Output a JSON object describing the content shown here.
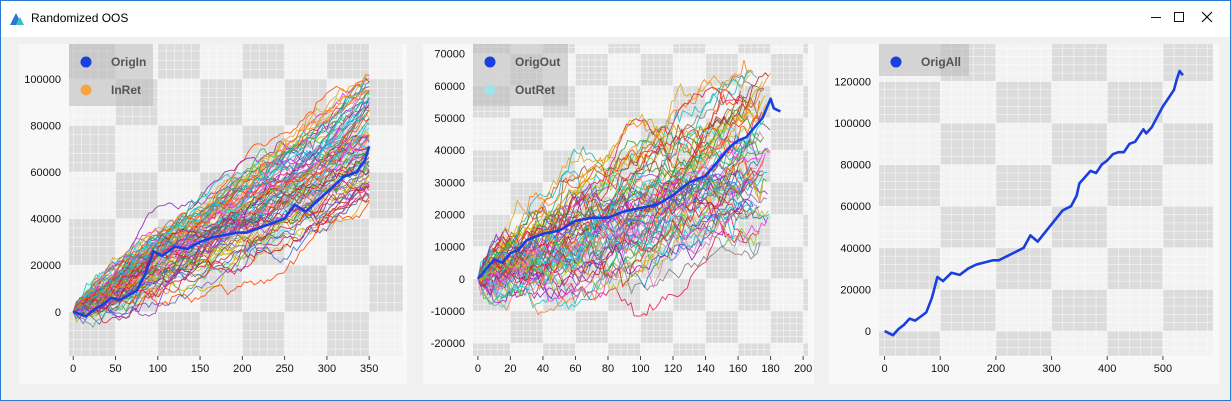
{
  "window": {
    "title": "Randomized OOS",
    "minimize_label": "—",
    "maximize_label": "☐",
    "close_label": "✕"
  },
  "colors": {
    "checker_dark": "#dcdcdc",
    "checker_light": "#f3f3f3",
    "minor_grid": "#ffffff",
    "legend_bg": "#b9b9b9",
    "original_line": "#1a3fe0",
    "inret_legend": "#f5a542",
    "outret_legend": "#9fe3e6"
  },
  "chart_data": [
    {
      "type": "line",
      "title": "",
      "xlabel": "",
      "ylabel": "",
      "xlim": [
        -5,
        390
      ],
      "ylim": [
        -19000,
        115000
      ],
      "xticks": [
        0,
        50,
        100,
        150,
        200,
        250,
        300,
        350
      ],
      "yticks": [
        0,
        20000,
        40000,
        60000,
        80000,
        100000
      ],
      "legend_position": "top-left",
      "legend": [
        {
          "name": "OrigIn",
          "color": "#1a3fe0"
        },
        {
          "name": "InRet",
          "color": "#f5a542"
        }
      ],
      "highlight_series": {
        "name": "OrigIn",
        "x": [
          0,
          15,
          25,
          35,
          45,
          55,
          65,
          75,
          85,
          95,
          105,
          120,
          135,
          150,
          165,
          180,
          195,
          205,
          220,
          235,
          250,
          262,
          275,
          290,
          305,
          320,
          335,
          345,
          350
        ],
        "y": [
          0,
          -2000,
          1000,
          3000,
          6000,
          5000,
          7000,
          9000,
          16000,
          26000,
          24000,
          28000,
          27000,
          30000,
          32000,
          33000,
          34000,
          34000,
          36000,
          38000,
          40000,
          46000,
          43000,
          48000,
          53000,
          58000,
          60000,
          65000,
          71000
        ]
      },
      "bundle": {
        "name": "InRet",
        "count": 90,
        "x_range": [
          0,
          350
        ],
        "end_value_range": [
          47000,
          102000
        ]
      }
    },
    {
      "type": "line",
      "title": "",
      "xlabel": "",
      "ylabel": "",
      "xlim": [
        -3,
        203
      ],
      "ylim": [
        -24000,
        73000
      ],
      "xticks": [
        0,
        20,
        40,
        60,
        80,
        100,
        120,
        140,
        160,
        180,
        200
      ],
      "yticks": [
        -20000,
        -10000,
        0,
        10000,
        20000,
        30000,
        40000,
        50000,
        60000,
        70000
      ],
      "legend_position": "top-left",
      "legend": [
        {
          "name": "OrigOut",
          "color": "#1a3fe0"
        },
        {
          "name": "OutRet",
          "color": "#9fe3e6"
        }
      ],
      "highlight_series": {
        "name": "OrigOut",
        "x": [
          0,
          5,
          10,
          15,
          20,
          25,
          30,
          40,
          50,
          60,
          70,
          80,
          90,
          100,
          110,
          120,
          130,
          140,
          150,
          155,
          160,
          165,
          170,
          175,
          180,
          182,
          186
        ],
        "y": [
          0,
          3000,
          6000,
          5000,
          8000,
          9000,
          12000,
          14000,
          15000,
          18000,
          19000,
          19000,
          21000,
          22000,
          23000,
          26000,
          30000,
          32000,
          38000,
          41000,
          43000,
          44000,
          47000,
          50000,
          56000,
          53000,
          52000
        ]
      },
      "bundle": {
        "name": "OutRet",
        "count": 75,
        "x_range": [
          0,
          180
        ],
        "end_value_range": [
          13000,
          66000
        ]
      }
    },
    {
      "type": "line",
      "title": "",
      "xlabel": "",
      "ylabel": "",
      "xlim": [
        -10,
        590
      ],
      "ylim": [
        -12000,
        138000
      ],
      "xticks": [
        0,
        100,
        200,
        300,
        400,
        500
      ],
      "yticks": [
        0,
        20000,
        40000,
        60000,
        80000,
        100000,
        120000
      ],
      "legend_position": "top-left",
      "legend": [
        {
          "name": "OrigAll",
          "color": "#1a3fe0"
        }
      ],
      "series": [
        {
          "name": "OrigAll",
          "x": [
            0,
            15,
            25,
            35,
            45,
            55,
            65,
            75,
            85,
            95,
            105,
            120,
            135,
            150,
            165,
            180,
            195,
            205,
            220,
            235,
            250,
            262,
            275,
            290,
            305,
            320,
            335,
            345,
            350,
            360,
            370,
            380,
            390,
            400,
            410,
            420,
            430,
            440,
            450,
            460,
            465,
            470,
            480,
            490,
            500,
            510,
            520,
            525,
            530,
            536
          ],
          "y": [
            0,
            -2000,
            1000,
            3000,
            6000,
            5000,
            7000,
            9000,
            16000,
            26000,
            24000,
            28000,
            27000,
            30000,
            32000,
            33000,
            34000,
            34000,
            36000,
            38000,
            40000,
            46000,
            43000,
            48000,
            53000,
            58000,
            60000,
            65000,
            71000,
            74000,
            77000,
            76000,
            80000,
            82000,
            85000,
            86000,
            86000,
            90000,
            91000,
            95000,
            97000,
            95000,
            98000,
            103000,
            108000,
            112000,
            116000,
            121000,
            125000,
            123000
          ]
        }
      ]
    }
  ]
}
